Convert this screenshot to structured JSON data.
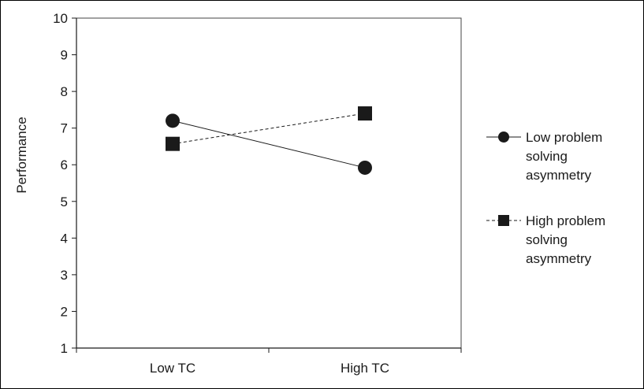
{
  "chart_data": {
    "type": "line",
    "title": "",
    "xlabel": "",
    "ylabel": "Performance",
    "categories": [
      "Low TC",
      "High TC"
    ],
    "ylim": [
      1,
      10
    ],
    "yticks": [
      "1",
      "2",
      "3",
      "4",
      "5",
      "6",
      "7",
      "8",
      "9",
      "10"
    ],
    "grid": false,
    "legend_position": "right",
    "series": [
      {
        "name": "Low problem solving asymmetry",
        "legend_lines": [
          "Low problem",
          "solving",
          "asymmetry"
        ],
        "values": [
          7.2,
          5.92
        ],
        "marker": "circle",
        "line_style": "solid",
        "color": "#1a1a1a"
      },
      {
        "name": "High problem solving asymmetry",
        "legend_lines": [
          "High problem",
          "solving",
          "asymmetry"
        ],
        "values": [
          6.57,
          7.4
        ],
        "marker": "square",
        "line_style": "dashed",
        "color": "#1a1a1a"
      }
    ]
  }
}
